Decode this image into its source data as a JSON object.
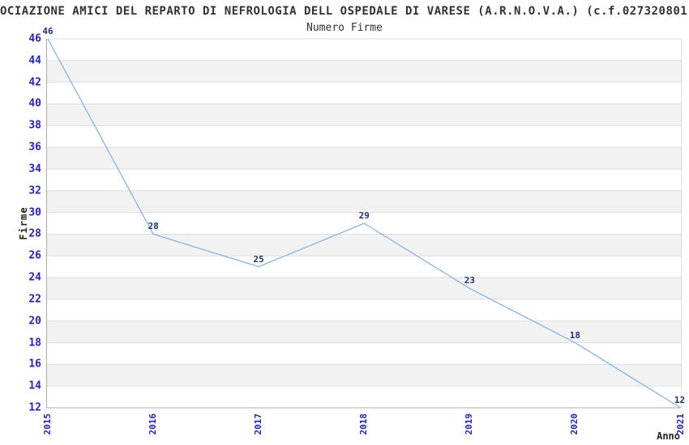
{
  "chart_data": {
    "type": "line",
    "title": "OCIAZIONE AMICI DEL REPARTO DI NEFROLOGIA DELL OSPEDALE DI VARESE (A.R.N.O.V.A.) (c.f.027320801",
    "subtitle": "Numero Firme",
    "xlabel": "Anno",
    "ylabel": "Firme",
    "categories": [
      "2015",
      "2016",
      "2017",
      "2018",
      "2019",
      "2020",
      "2021"
    ],
    "series": [
      {
        "name": "Numero Firme",
        "values": [
          46,
          28,
          25,
          29,
          23,
          18,
          12
        ]
      }
    ],
    "data_labels": [
      "46",
      "28",
      "25",
      "29",
      "23",
      "18",
      "12"
    ],
    "ylim": [
      12,
      46
    ],
    "ytick_step": 2,
    "yticks": [
      46,
      44,
      42,
      40,
      38,
      36,
      34,
      32,
      30,
      28,
      26,
      24,
      22,
      20,
      18,
      16,
      14,
      12
    ],
    "grid": "horizontal gridlines every 2 units with alternating shaded row bands",
    "legend": "none",
    "colors": {
      "line": "#86b4e8",
      "axis_tick_labels": "#2222cc",
      "data_labels": "#223377",
      "band_fill": "#f2f2f2",
      "gridline": "#dddddd",
      "axis_line": "#aaaaaa",
      "title_text": "#333333",
      "background": "#ffffff"
    }
  }
}
